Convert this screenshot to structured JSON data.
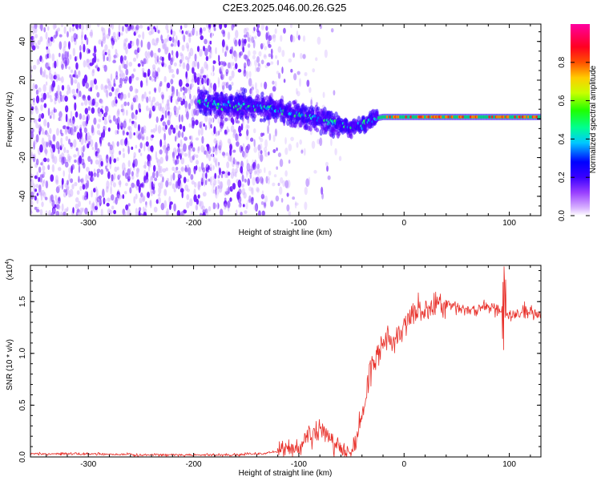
{
  "figure": {
    "title": "C2E3.2025.046.00.26.G25"
  },
  "chart_data": [
    {
      "type": "heatmap",
      "xlabel": "Height of straight line (km)",
      "ylabel": "Frequency (Hz)",
      "xlim": [
        -355,
        130
      ],
      "ylim": [
        -50,
        49
      ],
      "xticks": [
        -300,
        -200,
        -100,
        0,
        100
      ],
      "yticks": [
        -40,
        -20,
        0,
        20,
        40
      ],
      "colorbar": {
        "label": "Normalized spectral amplitude",
        "range": [
          0.0,
          1.0
        ],
        "ticks": [
          0.0,
          0.2,
          0.4,
          0.6,
          0.8
        ],
        "tick_labels": [
          "0.0",
          "0.2",
          "0.4",
          "0.6",
          "0.8"
        ],
        "colormap": [
          "#ffffff",
          "#c080ff",
          "#5000ff",
          "#0000ff",
          "#00c0ff",
          "#00ff80",
          "#40ff00",
          "#ffff00",
          "#ff8000",
          "#ff0000",
          "#ff00a0"
        ]
      },
      "signal_track": {
        "description_points": [
          [
            -195,
            9
          ],
          [
            -175,
            7
          ],
          [
            -150,
            7
          ],
          [
            -130,
            6
          ],
          [
            -110,
            3
          ],
          [
            -90,
            1
          ],
          [
            -75,
            -1
          ],
          [
            -60,
            -3
          ],
          [
            -50,
            -5
          ],
          [
            -40,
            -3
          ],
          [
            -30,
            0
          ],
          [
            -20,
            1
          ],
          [
            0,
            1
          ],
          [
            50,
            1
          ],
          [
            130,
            1
          ]
        ],
        "strong_segment_from": -25
      },
      "noise_region": {
        "x_range": [
          -355,
          -110
        ],
        "color": "#7b2cff"
      }
    },
    {
      "type": "line",
      "xlabel": "Height of straight line (km)",
      "ylabel": "SNR (10 * v/v)",
      "y_multiplier": "(x10",
      "y_multiplier_exp": "4",
      "y_multiplier_close": ")",
      "xlim": [
        -355,
        130
      ],
      "ylim": [
        0,
        1.85
      ],
      "xticks": [
        -300,
        -200,
        -100,
        0,
        100
      ],
      "yticks": [
        0.0,
        0.5,
        1.0,
        1.5
      ],
      "ytick_labels": [
        "0.0",
        "0.5",
        "1.0",
        "1.5"
      ],
      "series": [
        {
          "color": "#e8302a",
          "x": [
            -355,
            -300,
            -250,
            -200,
            -160,
            -140,
            -120,
            -100,
            -90,
            -80,
            -70,
            -60,
            -50,
            -45,
            -40,
            -30,
            -25,
            -15,
            -10,
            0,
            10,
            20,
            30,
            40,
            60,
            80,
            95,
            100,
            115,
            130
          ],
          "y": [
            0.03,
            0.03,
            0.02,
            0.02,
            0.02,
            0.03,
            0.05,
            0.1,
            0.2,
            0.28,
            0.18,
            0.08,
            0.05,
            0.15,
            0.4,
            0.9,
            1.0,
            1.15,
            1.1,
            1.3,
            1.4,
            1.4,
            1.47,
            1.45,
            1.42,
            1.45,
            1.42,
            1.35,
            1.4,
            1.38
          ]
        }
      ]
    }
  ]
}
